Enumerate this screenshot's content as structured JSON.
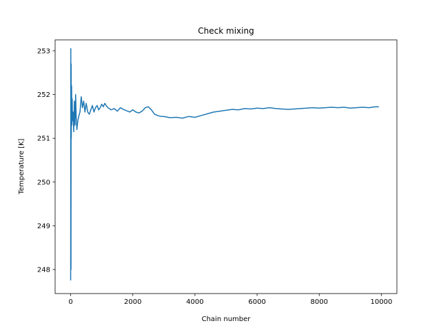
{
  "chart_data": {
    "type": "line",
    "title": "Check mixing",
    "xlabel": "Chain number",
    "ylabel": "Temperature [K]",
    "xlim": [
      -500,
      10500
    ],
    "ylim": [
      247.45,
      253.25
    ],
    "xticks": [
      0,
      2000,
      4000,
      6000,
      8000,
      10000
    ],
    "yticks": [
      248,
      249,
      250,
      251,
      252,
      253
    ],
    "xtick_labels": [
      "0",
      "2000",
      "4000",
      "6000",
      "8000",
      "10000"
    ],
    "ytick_labels": [
      "248",
      "249",
      "250",
      "251",
      "252",
      "253"
    ],
    "grid": false,
    "legend": "none",
    "colors": {
      "series": "#1f77b4"
    },
    "series": [
      {
        "x": [
          0,
          5,
          10,
          15,
          20,
          30,
          40,
          50,
          60,
          80,
          100,
          120,
          140,
          160,
          180,
          200,
          230,
          260,
          300,
          340,
          380,
          420,
          460,
          500,
          550,
          600,
          650,
          700,
          750,
          800,
          850,
          900,
          950,
          1000,
          1050,
          1100,
          1150,
          1200,
          1300,
          1400,
          1500,
          1600,
          1700,
          1800,
          1900,
          2000,
          2100,
          2200,
          2300,
          2400,
          2500,
          2600,
          2700,
          2800,
          2900,
          3000,
          3200,
          3400,
          3600,
          3800,
          4000,
          4200,
          4400,
          4600,
          4800,
          5000,
          5200,
          5400,
          5600,
          5800,
          6000,
          6200,
          6400,
          6600,
          6800,
          7000,
          7200,
          7400,
          7600,
          7800,
          8000,
          8200,
          8400,
          8600,
          8800,
          9000,
          9200,
          9400,
          9600,
          9800,
          9920
        ],
        "y": [
          247.75,
          253.05,
          248.0,
          252.7,
          251.0,
          252.2,
          251.3,
          251.9,
          251.4,
          251.6,
          251.15,
          251.85,
          251.3,
          252.0,
          251.45,
          251.2,
          251.4,
          251.5,
          251.6,
          251.95,
          251.7,
          251.85,
          251.6,
          251.8,
          251.6,
          251.55,
          251.65,
          251.75,
          251.6,
          251.7,
          251.75,
          251.65,
          251.7,
          251.78,
          251.72,
          251.8,
          251.74,
          251.7,
          251.65,
          251.68,
          251.62,
          251.7,
          251.66,
          251.63,
          251.6,
          251.65,
          251.6,
          251.58,
          251.62,
          251.7,
          251.72,
          251.65,
          251.55,
          251.52,
          251.5,
          251.5,
          251.47,
          251.48,
          251.46,
          251.5,
          251.48,
          251.52,
          251.56,
          251.6,
          251.62,
          251.64,
          251.66,
          251.65,
          251.68,
          251.67,
          251.69,
          251.68,
          251.7,
          251.68,
          251.67,
          251.66,
          251.67,
          251.68,
          251.69,
          251.7,
          251.69,
          251.7,
          251.71,
          251.7,
          251.71,
          251.69,
          251.7,
          251.71,
          251.7,
          251.72,
          251.72
        ]
      }
    ]
  }
}
